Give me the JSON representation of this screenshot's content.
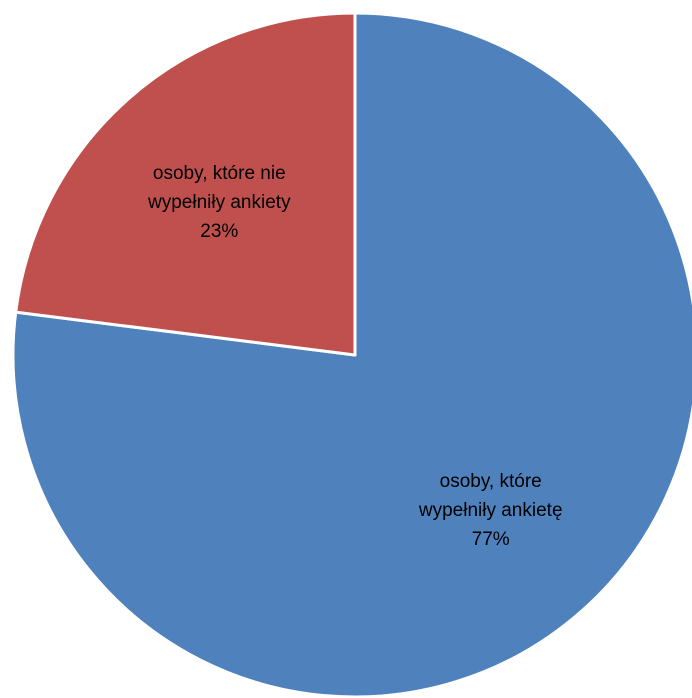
{
  "chart_data": {
    "type": "pie",
    "categories": [
      "osoby, które wypełniły ankietę",
      "osoby, które nie wypełniły ankiety"
    ],
    "values": [
      77,
      23
    ],
    "unit": "%",
    "start_angle_deg": 0,
    "direction": "clockwise",
    "legend": "none",
    "slices": [
      {
        "name": "osoby, które wypełniły ankietę",
        "value": 77,
        "color": "#4f81bd",
        "label_lines": [
          "osoby, które",
          "wypełniły ankietę",
          "77%"
        ]
      },
      {
        "name": "osoby, które nie wypełniły ankiety",
        "value": 23,
        "color": "#c0504d",
        "label_lines": [
          "osoby, które nie",
          "wypełniły ankiety",
          "23%"
        ]
      }
    ]
  }
}
